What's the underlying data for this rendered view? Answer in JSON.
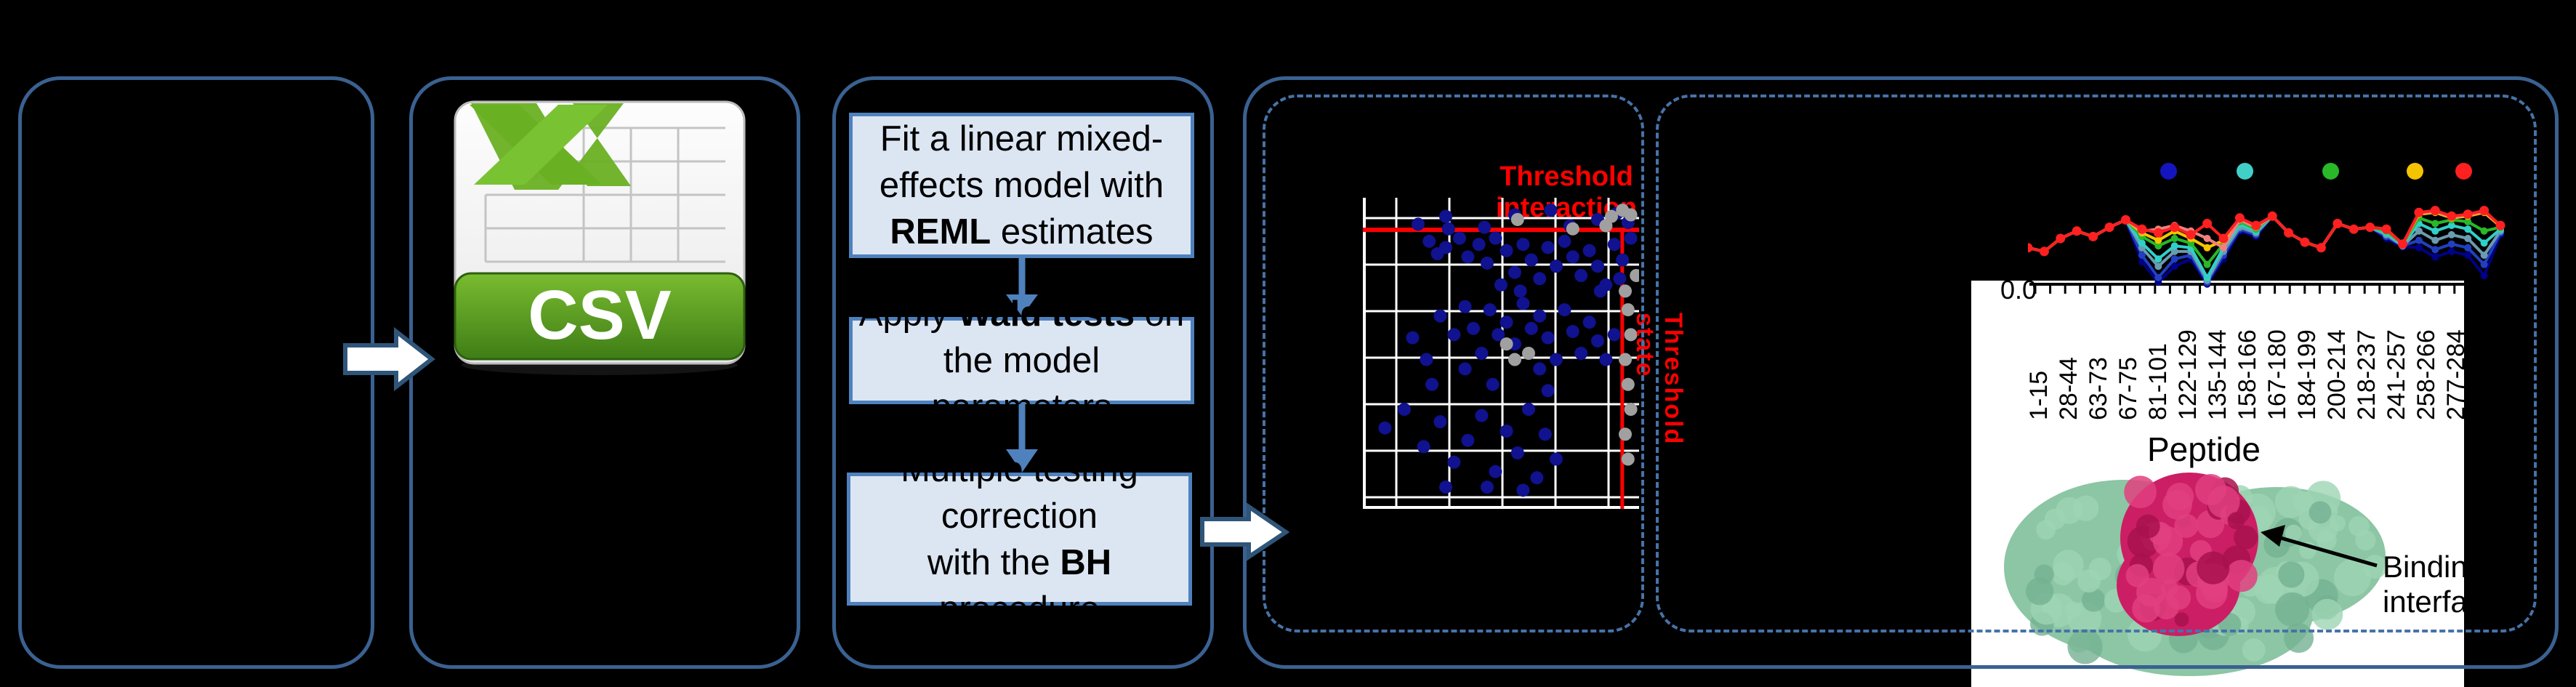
{
  "figure": {
    "type": "analysis-pipeline-diagram",
    "background": "#000000",
    "panel_border_color": "#3a6191",
    "dashed_border_color": "#4673a8"
  },
  "csv": {
    "label": "CSV",
    "band_color": "#4e9c1e",
    "page_color": "#ffffff",
    "x_color": "#6ab023"
  },
  "flow": {
    "box_fill": "#dce6f2",
    "box_border": "#4f81bd",
    "boxes": [
      {
        "lines": [
          [
            [
              "Fit a linear mixed-",
              false
            ]
          ],
          [
            [
              "effects model with",
              false
            ]
          ],
          [
            [
              "REML",
              true
            ],
            [
              " estimates",
              false
            ]
          ]
        ]
      },
      {
        "lines": [
          [
            [
              "Apply ",
              false
            ],
            [
              "Wald tests",
              true
            ],
            [
              " on",
              false
            ]
          ],
          [
            [
              "the model parameters",
              false
            ]
          ]
        ]
      },
      {
        "lines": [
          [
            [
              "Multiple testing",
              false
            ]
          ],
          [
            [
              "correction",
              false
            ]
          ],
          [
            [
              "with the ",
              false
            ],
            [
              "BH",
              true
            ],
            [
              " procedure",
              false
            ]
          ]
        ]
      }
    ]
  },
  "scatter": {
    "title": "Threshold interaction",
    "rotated_label": "Threshold state",
    "grid_color": "#ffffff",
    "threshold_color": "#ff0000",
    "dot_color_significant": "#10128f",
    "dot_color_nonsignificant": "#a0a0a0",
    "hline_y": 0.103,
    "vline_x": 0.939,
    "points_blue": [
      [
        0.3,
        0.06
      ],
      [
        0.55,
        0.055
      ],
      [
        0.68,
        0.04
      ],
      [
        0.75,
        0.09
      ],
      [
        0.2,
        0.085
      ],
      [
        0.85,
        0.07
      ],
      [
        0.92,
        0.05
      ],
      [
        0.96,
        0.08
      ],
      [
        0.31,
        0.1
      ],
      [
        0.44,
        0.095
      ],
      [
        0.24,
        0.14
      ],
      [
        0.27,
        0.18
      ],
      [
        0.3,
        0.16
      ],
      [
        0.35,
        0.13
      ],
      [
        0.38,
        0.19
      ],
      [
        0.42,
        0.15
      ],
      [
        0.45,
        0.21
      ],
      [
        0.48,
        0.13
      ],
      [
        0.52,
        0.17
      ],
      [
        0.55,
        0.24
      ],
      [
        0.58,
        0.15
      ],
      [
        0.61,
        0.2
      ],
      [
        0.64,
        0.26
      ],
      [
        0.67,
        0.16
      ],
      [
        0.7,
        0.22
      ],
      [
        0.73,
        0.14
      ],
      [
        0.76,
        0.19
      ],
      [
        0.79,
        0.25
      ],
      [
        0.82,
        0.17
      ],
      [
        0.85,
        0.22
      ],
      [
        0.88,
        0.28
      ],
      [
        0.91,
        0.15
      ],
      [
        0.94,
        0.2
      ],
      [
        0.97,
        0.13
      ],
      [
        0.5,
        0.28
      ],
      [
        0.57,
        0.3
      ],
      [
        0.86,
        0.3
      ],
      [
        0.93,
        0.26
      ],
      [
        0.18,
        0.45
      ],
      [
        0.23,
        0.52
      ],
      [
        0.28,
        0.38
      ],
      [
        0.33,
        0.44
      ],
      [
        0.37,
        0.35
      ],
      [
        0.4,
        0.42
      ],
      [
        0.43,
        0.5
      ],
      [
        0.46,
        0.36
      ],
      [
        0.49,
        0.44
      ],
      [
        0.52,
        0.4
      ],
      [
        0.55,
        0.47
      ],
      [
        0.58,
        0.34
      ],
      [
        0.61,
        0.42
      ],
      [
        0.64,
        0.38
      ],
      [
        0.67,
        0.45
      ],
      [
        0.7,
        0.52
      ],
      [
        0.73,
        0.36
      ],
      [
        0.76,
        0.43
      ],
      [
        0.79,
        0.5
      ],
      [
        0.82,
        0.4
      ],
      [
        0.85,
        0.46
      ],
      [
        0.88,
        0.52
      ],
      [
        0.91,
        0.44
      ],
      [
        0.64,
        0.55
      ],
      [
        0.37,
        0.55
      ],
      [
        0.08,
        0.74
      ],
      [
        0.15,
        0.68
      ],
      [
        0.22,
        0.8
      ],
      [
        0.28,
        0.72
      ],
      [
        0.33,
        0.85
      ],
      [
        0.38,
        0.78
      ],
      [
        0.43,
        0.7
      ],
      [
        0.48,
        0.88
      ],
      [
        0.52,
        0.75
      ],
      [
        0.56,
        0.82
      ],
      [
        0.6,
        0.68
      ],
      [
        0.63,
        0.9
      ],
      [
        0.66,
        0.76
      ],
      [
        0.7,
        0.84
      ],
      [
        0.45,
        0.93
      ],
      [
        0.3,
        0.93
      ],
      [
        0.58,
        0.94
      ],
      [
        0.25,
        0.6
      ],
      [
        0.47,
        0.6
      ],
      [
        0.67,
        0.62
      ]
    ],
    "points_gray": [
      [
        0.95,
        0.3
      ],
      [
        0.96,
        0.36
      ],
      [
        0.97,
        0.44
      ],
      [
        0.95,
        0.52
      ],
      [
        0.96,
        0.6
      ],
      [
        0.97,
        0.68
      ],
      [
        0.95,
        0.76
      ],
      [
        0.96,
        0.84
      ],
      [
        0.9,
        0.06
      ],
      [
        0.94,
        0.04
      ],
      [
        0.97,
        0.055
      ],
      [
        0.88,
        0.09
      ],
      [
        0.52,
        0.47
      ],
      [
        0.55,
        0.52
      ],
      [
        0.6,
        0.5
      ],
      [
        0.76,
        0.1
      ],
      [
        0.56,
        0.07
      ],
      [
        0.99,
        0.25
      ]
    ]
  },
  "profile": {
    "ylabel_tick": "0.0",
    "xlabel": "Peptide",
    "x_labels": [
      "1-15",
      "28-44",
      "63-73",
      "67-75",
      "81-101",
      "122-129",
      "135-144",
      "158-166",
      "167-180",
      "184-199",
      "200-214",
      "218-237",
      "241-257",
      "258-266",
      "277-284"
    ],
    "legend_colors": [
      "#1515c0",
      "#40d0c8",
      "#28b828",
      "#f5c400",
      "#ff2020"
    ],
    "series": [
      {
        "name": "navy",
        "color": "#000088",
        "values": [
          0.6,
          0.64,
          0.5,
          0.42,
          0.48,
          0.38,
          0.3,
          0.75,
          0.97,
          0.8,
          0.72,
          0.99,
          0.72,
          0.42,
          0.48,
          0.26,
          0.44,
          0.54,
          0.6,
          0.34,
          0.4,
          0.38,
          0.5,
          0.59,
          0.6,
          0.7,
          0.64,
          0.68,
          0.9,
          0.46
        ]
      },
      {
        "name": "blue",
        "color": "#2040c0",
        "values": [
          0.6,
          0.64,
          0.5,
          0.42,
          0.48,
          0.38,
          0.3,
          0.68,
          0.92,
          0.72,
          0.68,
          0.97,
          0.68,
          0.4,
          0.46,
          0.26,
          0.44,
          0.54,
          0.6,
          0.34,
          0.4,
          0.38,
          0.48,
          0.58,
          0.52,
          0.62,
          0.56,
          0.6,
          0.78,
          0.44
        ]
      },
      {
        "name": "slate",
        "color": "#6b9bb0",
        "values": [
          0.6,
          0.64,
          0.5,
          0.42,
          0.48,
          0.38,
          0.3,
          0.6,
          0.8,
          0.64,
          0.64,
          0.95,
          0.64,
          0.38,
          0.44,
          0.26,
          0.44,
          0.54,
          0.6,
          0.34,
          0.4,
          0.38,
          0.46,
          0.58,
          0.42,
          0.52,
          0.46,
          0.5,
          0.68,
          0.42
        ]
      },
      {
        "name": "turquoise",
        "color": "#30d0c8",
        "values": [
          0.6,
          0.64,
          0.5,
          0.42,
          0.48,
          0.38,
          0.3,
          0.55,
          0.72,
          0.58,
          0.6,
          0.92,
          0.6,
          0.35,
          0.42,
          0.26,
          0.44,
          0.54,
          0.6,
          0.34,
          0.4,
          0.38,
          0.44,
          0.57,
          0.34,
          0.42,
          0.36,
          0.4,
          0.55,
          0.4
        ]
      },
      {
        "name": "green",
        "color": "#28b828",
        "values": [
          0.6,
          0.64,
          0.5,
          0.42,
          0.48,
          0.38,
          0.3,
          0.48,
          0.58,
          0.5,
          0.55,
          0.78,
          0.56,
          0.32,
          0.4,
          0.26,
          0.44,
          0.54,
          0.6,
          0.34,
          0.4,
          0.38,
          0.42,
          0.56,
          0.28,
          0.34,
          0.3,
          0.32,
          0.42,
          0.38
        ]
      },
      {
        "name": "gold",
        "color": "#f5c400",
        "values": [
          0.6,
          0.64,
          0.5,
          0.42,
          0.48,
          0.38,
          0.3,
          0.44,
          0.52,
          0.42,
          0.5,
          0.6,
          0.52,
          0.3,
          0.38,
          0.26,
          0.44,
          0.54,
          0.6,
          0.34,
          0.4,
          0.38,
          0.4,
          0.56,
          0.24,
          0.22,
          0.28,
          0.26,
          0.22,
          0.37
        ]
      },
      {
        "name": "salmon",
        "color": "#f08080",
        "values": [
          0.6,
          0.64,
          0.5,
          0.42,
          0.48,
          0.38,
          0.3,
          0.42,
          0.4,
          0.36,
          0.42,
          0.5,
          0.6,
          0.3,
          0.38,
          0.26,
          0.44,
          0.54,
          0.6,
          0.34,
          0.4,
          0.38,
          0.4,
          0.56,
          0.23,
          0.21,
          0.27,
          0.25,
          0.21,
          0.36
        ]
      },
      {
        "name": "red",
        "color": "#ff2020",
        "values": [
          0.6,
          0.64,
          0.5,
          0.42,
          0.48,
          0.38,
          0.3,
          0.4,
          0.44,
          0.38,
          0.46,
          0.34,
          0.5,
          0.28,
          0.36,
          0.26,
          0.44,
          0.54,
          0.6,
          0.34,
          0.4,
          0.38,
          0.4,
          0.56,
          0.22,
          0.2,
          0.26,
          0.24,
          0.2,
          0.36
        ]
      }
    ]
  },
  "structure": {
    "body_color": "#8cc6a4",
    "patch_color": "#cc1e64",
    "annotation_line1": "Binding",
    "annotation_line2": "interface"
  }
}
